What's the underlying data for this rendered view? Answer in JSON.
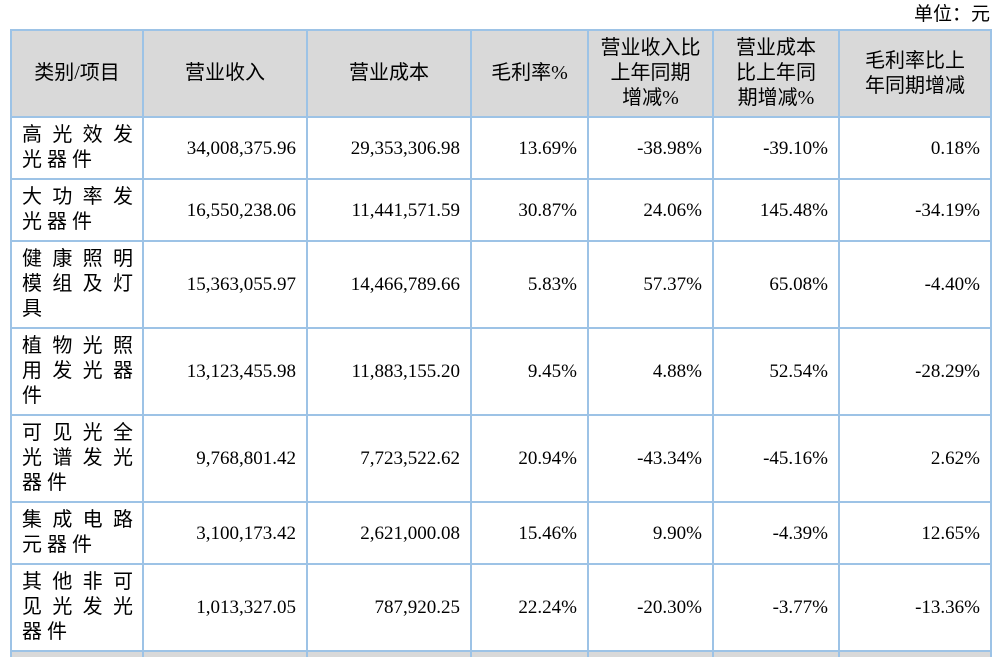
{
  "unit_label": "单位：元",
  "table": {
    "headers": [
      "类别/项目",
      "营业收入",
      "营业成本",
      "毛利率%",
      "营业收入比\n上年同期\n增减%",
      "营业成本\n比上年同\n期增减%",
      "毛利率比上\n年同期增减"
    ],
    "rows": [
      {
        "category": "高光效发光器件",
        "revenue": "34,008,375.96",
        "cost": "29,353,306.98",
        "margin": "13.69%",
        "revenue_yoy": "-38.98%",
        "cost_yoy": "-39.10%",
        "margin_yoy": "0.18%"
      },
      {
        "category": "大功率发光器件",
        "revenue": "16,550,238.06",
        "cost": "11,441,571.59",
        "margin": "30.87%",
        "revenue_yoy": "24.06%",
        "cost_yoy": "145.48%",
        "margin_yoy": "-34.19%"
      },
      {
        "category": "健康照明模组及灯具",
        "revenue": "15,363,055.97",
        "cost": "14,466,789.66",
        "margin": "5.83%",
        "revenue_yoy": "57.37%",
        "cost_yoy": "65.08%",
        "margin_yoy": "-4.40%"
      },
      {
        "category": "植物光照用发光器件",
        "revenue": "13,123,455.98",
        "cost": "11,883,155.20",
        "margin": "9.45%",
        "revenue_yoy": "4.88%",
        "cost_yoy": "52.54%",
        "margin_yoy": "-28.29%"
      },
      {
        "category": "可见光全光谱发光器件",
        "revenue": "9,768,801.42",
        "cost": "7,723,522.62",
        "margin": "20.94%",
        "revenue_yoy": "-43.34%",
        "cost_yoy": "-45.16%",
        "margin_yoy": "2.62%"
      },
      {
        "category": "集成电路元器件",
        "revenue": "3,100,173.42",
        "cost": "2,621,000.08",
        "margin": "15.46%",
        "revenue_yoy": "9.90%",
        "cost_yoy": "-4.39%",
        "margin_yoy": "12.65%"
      },
      {
        "category": "其他非可见光发光器件",
        "revenue": "1,013,327.05",
        "cost": "787,920.25",
        "margin": "22.24%",
        "revenue_yoy": "-20.30%",
        "cost_yoy": "-3.77%",
        "margin_yoy": "-13.36%"
      }
    ]
  },
  "colors": {
    "border": "#9dc3e6",
    "header_bg": "#d9d9d9",
    "text": "#000000"
  }
}
